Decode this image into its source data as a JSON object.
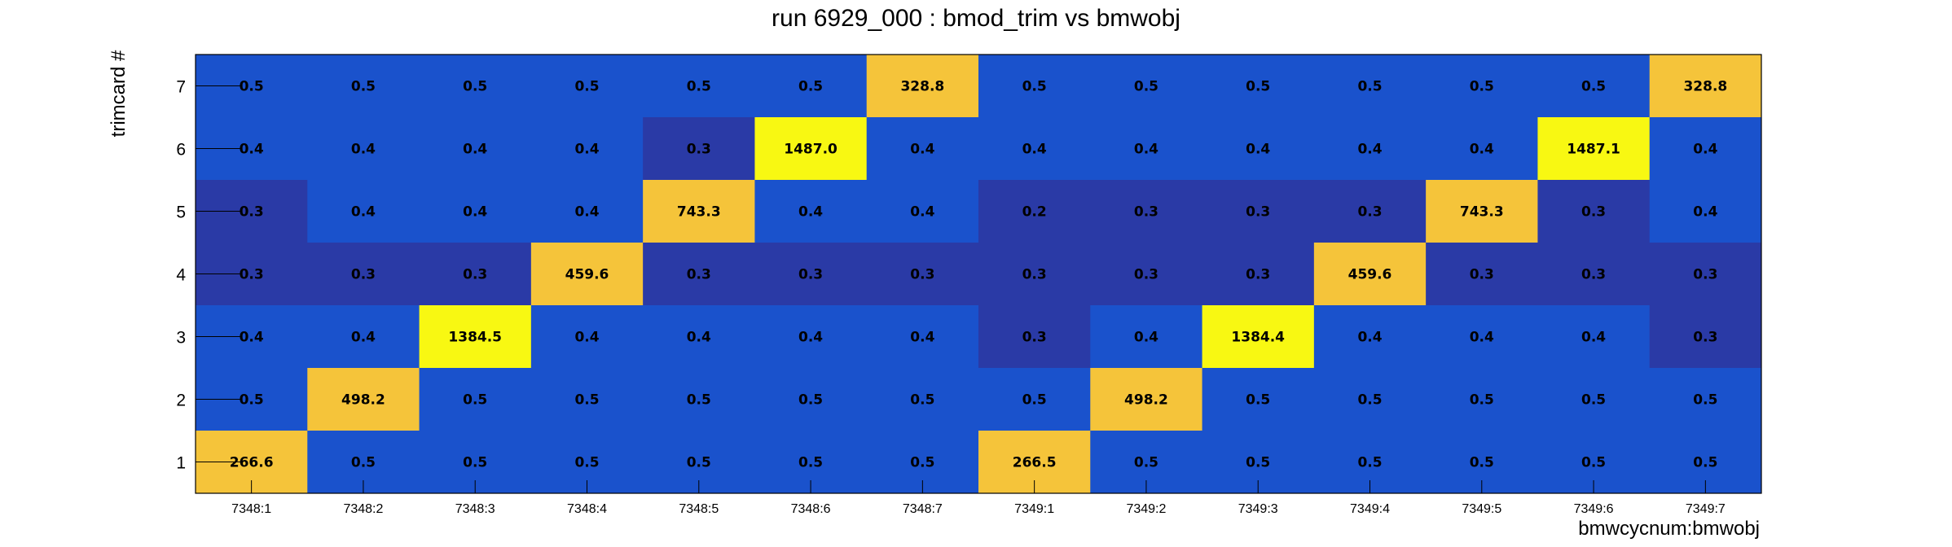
{
  "chart_data": {
    "type": "heatmap",
    "title": "run 6929_000 : bmod_trim vs bmwobj",
    "xlabel": "bmwcycnum:bmwobj",
    "ylabel": "trimcard #",
    "x_categories": [
      "7348:1",
      "7348:2",
      "7348:3",
      "7348:4",
      "7348:5",
      "7348:6",
      "7348:7",
      "7349:1",
      "7349:2",
      "7349:3",
      "7349:4",
      "7349:5",
      "7349:6",
      "7349:7"
    ],
    "y_categories": [
      "1",
      "2",
      "3",
      "4",
      "5",
      "6",
      "7"
    ],
    "rows": [
      {
        "y": "7",
        "values": [
          "0.5",
          "0.5",
          "0.5",
          "0.5",
          "0.5",
          "0.5",
          "328.8",
          "0.5",
          "0.5",
          "0.5",
          "0.5",
          "0.5",
          "0.5",
          "328.8"
        ]
      },
      {
        "y": "6",
        "values": [
          "0.4",
          "0.4",
          "0.4",
          "0.4",
          "0.3",
          "1487.0",
          "0.4",
          "0.4",
          "0.4",
          "0.4",
          "0.4",
          "0.4",
          "1487.1",
          "0.4"
        ]
      },
      {
        "y": "5",
        "values": [
          "0.3",
          "0.4",
          "0.4",
          "0.4",
          "743.3",
          "0.4",
          "0.4",
          "0.2",
          "0.3",
          "0.3",
          "0.3",
          "743.3",
          "0.3",
          "0.4"
        ]
      },
      {
        "y": "4",
        "values": [
          "0.3",
          "0.3",
          "0.3",
          "459.6",
          "0.3",
          "0.3",
          "0.3",
          "0.3",
          "0.3",
          "0.3",
          "459.6",
          "0.3",
          "0.3",
          "0.3"
        ]
      },
      {
        "y": "3",
        "values": [
          "0.4",
          "0.4",
          "1384.5",
          "0.4",
          "0.4",
          "0.4",
          "0.4",
          "0.3",
          "0.4",
          "1384.4",
          "0.4",
          "0.4",
          "0.4",
          "0.3"
        ]
      },
      {
        "y": "2",
        "values": [
          "0.5",
          "498.2",
          "0.5",
          "0.5",
          "0.5",
          "0.5",
          "0.5",
          "0.5",
          "498.2",
          "0.5",
          "0.5",
          "0.5",
          "0.5",
          "0.5"
        ]
      },
      {
        "y": "1",
        "values": [
          "266.6",
          "0.5",
          "0.5",
          "0.5",
          "0.5",
          "0.5",
          "0.5",
          "266.5",
          "0.5",
          "0.5",
          "0.5",
          "0.5",
          "0.5",
          "0.5"
        ]
      }
    ],
    "colors": {
      "low": "#2a3aa6",
      "mid": "#1a52cc",
      "high_mid": "#f5c43a",
      "high": "#f8f812"
    },
    "grid": false
  }
}
